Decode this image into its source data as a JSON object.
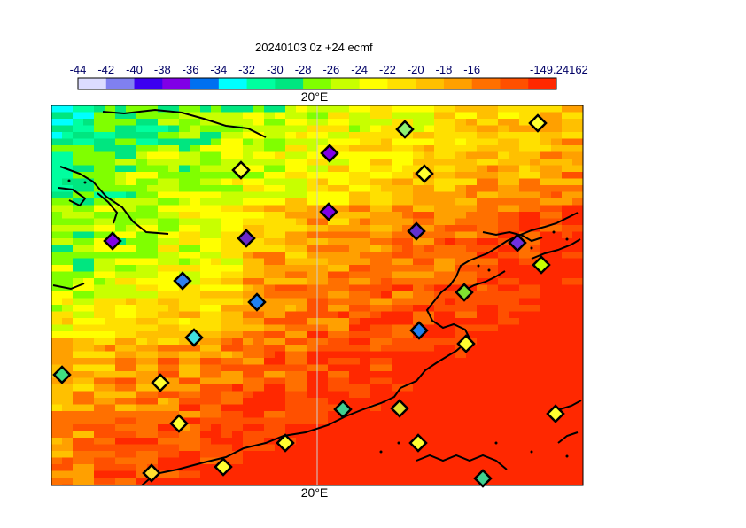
{
  "title": "20240103 0z +24 ecmf",
  "colorbar": {
    "labels": [
      "-44",
      "-42",
      "-40",
      "-38",
      "-36",
      "-34",
      "-32",
      "-30",
      "-28",
      "-26",
      "-24",
      "-22",
      "-20",
      "-18",
      "-16",
      "-149.24162"
    ],
    "colors": [
      "#dcdcff",
      "#8080f0",
      "#3c00f0",
      "#8000e6",
      "#0070f0",
      "#00ffff",
      "#00ff9f",
      "#00e680",
      "#80ff00",
      "#c8ff00",
      "#ffff00",
      "#ffe000",
      "#ffc000",
      "#ffa000",
      "#ff7000",
      "#ff5000",
      "#ff2800"
    ]
  },
  "map": {
    "lon_label_top": "20°E",
    "lon_label_bottom": "20°E",
    "stations": [
      {
        "color": "#8ef070"
      },
      {
        "color": "#ffff30"
      },
      {
        "color": "#8000e6"
      },
      {
        "color": "#ffff30"
      },
      {
        "color": "#ffff30"
      },
      {
        "color": "#8000e6"
      },
      {
        "color": "#6030d0"
      },
      {
        "color": "#8000e6"
      },
      {
        "color": "#6a2ac8"
      },
      {
        "color": "#7030e0"
      },
      {
        "color": "#c8ff00"
      },
      {
        "color": "#3080f0"
      },
      {
        "color": "#2080f0"
      },
      {
        "color": "#80e030"
      },
      {
        "color": "#2080f0"
      },
      {
        "color": "#40e0e0"
      },
      {
        "color": "#ffff30"
      },
      {
        "color": "#40e080"
      },
      {
        "color": "#ffff30"
      },
      {
        "color": "#40d090"
      },
      {
        "color": "#e0e030"
      },
      {
        "color": "#ffff30"
      },
      {
        "color": "#ffff30"
      },
      {
        "color": "#ffff30"
      },
      {
        "color": "#ffe030"
      },
      {
        "color": "#ffff30"
      },
      {
        "color": "#ffff30"
      },
      {
        "color": "#40d090"
      }
    ]
  }
}
